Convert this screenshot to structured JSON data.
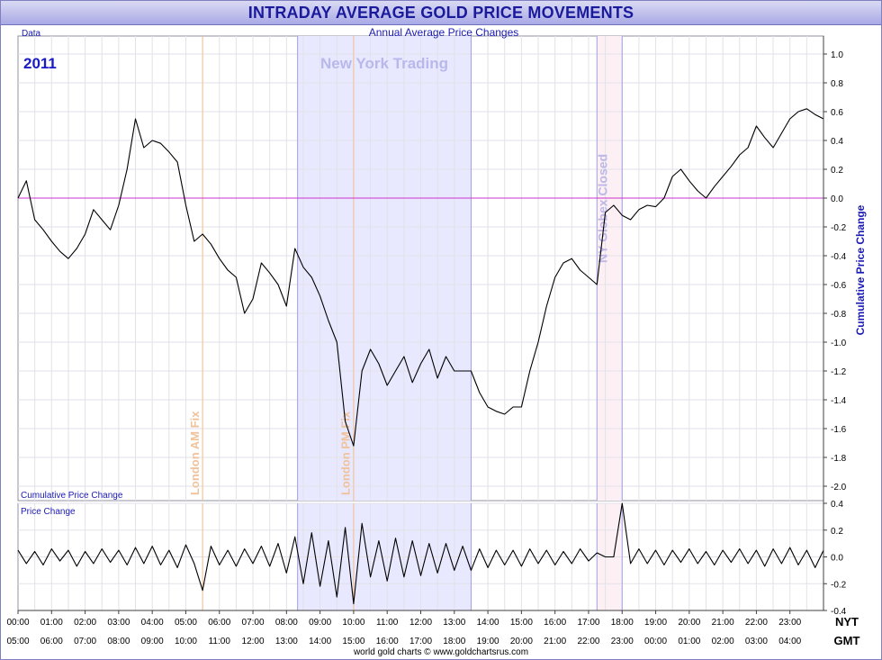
{
  "title": "INTRADAY AVERAGE GOLD PRICE MOVEMENTS",
  "footer": "world gold charts © www.goldchartsrus.com",
  "colors": {
    "title": "#1a1a9c",
    "label_blue": "#1a1ab4",
    "zero_line": "#cc33cc",
    "ny_band": "#e8e8ff",
    "globex_band": "#fdf0f4",
    "fix_line": "#f0c090",
    "band_edge": "#a0a0e0",
    "fix_text": "#f0c29a",
    "globex_text": "#bcb8e8",
    "ny_text": "#b8b8ec"
  },
  "chart_data": [
    {
      "type": "line",
      "id": "cumulative",
      "top_label": "Data",
      "subtitle": "Annual Average Price Changes",
      "year_label": "2011",
      "ylabel": "Cumulative Price Change",
      "panel_label": "Cumulative Price Change",
      "ylim": [
        -2.1,
        1.1
      ],
      "yticks": [
        "1.0",
        "0.8",
        "0.6",
        "0.4",
        "0.2",
        "0.0",
        "-0.2",
        "-0.4",
        "-0.6",
        "-0.8",
        "-1.0",
        "-1.2",
        "-1.4",
        "-1.6",
        "-1.8",
        "-2.0"
      ],
      "grid": true,
      "x_range_hours_nyt": [
        0,
        24
      ],
      "reference_line": 0.0,
      "series": [
        {
          "x": [
            0.0,
            0.25,
            0.5,
            0.75,
            1.0,
            1.25,
            1.5,
            1.75,
            2.0,
            2.25,
            2.5,
            2.75,
            3.0,
            3.25,
            3.5,
            3.75,
            4.0,
            4.25,
            4.5,
            4.75,
            5.0,
            5.25,
            5.5,
            5.75,
            6.0,
            6.25,
            6.5,
            6.75,
            7.0,
            7.25,
            7.5,
            7.75,
            8.0,
            8.25,
            8.5,
            8.75,
            9.0,
            9.25,
            9.5,
            9.75,
            10.0,
            10.25,
            10.5,
            10.75,
            11.0,
            11.25,
            11.5,
            11.75,
            12.0,
            12.25,
            12.5,
            12.75,
            13.0,
            13.25,
            13.5,
            13.75,
            14.0,
            14.25,
            14.5,
            14.75,
            15.0,
            15.25,
            15.5,
            15.75,
            16.0,
            16.25,
            16.5,
            16.75,
            17.0,
            17.25,
            17.5,
            17.75,
            18.0,
            18.25,
            18.5,
            18.75,
            19.0,
            19.25,
            19.5,
            19.75,
            20.0,
            20.25,
            20.5,
            20.75,
            21.0,
            21.25,
            21.5,
            21.75,
            22.0,
            22.25,
            22.5,
            22.75,
            23.0,
            23.25,
            23.5,
            23.75,
            24.0
          ],
          "y": [
            0.0,
            0.12,
            -0.15,
            -0.22,
            -0.3,
            -0.37,
            -0.42,
            -0.35,
            -0.25,
            -0.08,
            -0.15,
            -0.22,
            -0.05,
            0.2,
            0.55,
            0.35,
            0.4,
            0.38,
            0.32,
            0.25,
            -0.05,
            -0.3,
            -0.25,
            -0.32,
            -0.42,
            -0.5,
            -0.55,
            -0.8,
            -0.7,
            -0.45,
            -0.52,
            -0.6,
            -0.75,
            -0.35,
            -0.48,
            -0.55,
            -0.68,
            -0.85,
            -1.0,
            -1.55,
            -1.72,
            -1.2,
            -1.05,
            -1.15,
            -1.3,
            -1.2,
            -1.1,
            -1.28,
            -1.15,
            -1.05,
            -1.25,
            -1.1,
            -1.2,
            -1.2,
            -1.2,
            -1.35,
            -1.45,
            -1.48,
            -1.5,
            -1.45,
            -1.45,
            -1.2,
            -1.0,
            -0.75,
            -0.55,
            -0.45,
            -0.42,
            -0.5,
            -0.55,
            -0.6,
            -0.1,
            -0.05,
            -0.12,
            -0.15,
            -0.08,
            -0.05,
            -0.06,
            0.0,
            0.15,
            0.2,
            0.12,
            0.05,
            0.0,
            0.08,
            0.15,
            0.22,
            0.3,
            0.35,
            0.5,
            0.42,
            0.35,
            0.45,
            0.55,
            0.6,
            0.62,
            0.58,
            0.55
          ]
        }
      ]
    },
    {
      "type": "line",
      "id": "price-change",
      "panel_label": "Price Change",
      "ylim": [
        -0.4,
        0.4
      ],
      "yticks": [
        "0.4",
        "0.2",
        "0.0",
        "-0.2",
        "-0.4"
      ],
      "grid": true,
      "x_range_hours_nyt": [
        0,
        24
      ],
      "series": [
        {
          "x": [
            0.0,
            0.25,
            0.5,
            0.75,
            1.0,
            1.25,
            1.5,
            1.75,
            2.0,
            2.25,
            2.5,
            2.75,
            3.0,
            3.25,
            3.5,
            3.75,
            4.0,
            4.25,
            4.5,
            4.75,
            5.0,
            5.25,
            5.5,
            5.75,
            6.0,
            6.25,
            6.5,
            6.75,
            7.0,
            7.25,
            7.5,
            7.75,
            8.0,
            8.25,
            8.5,
            8.75,
            9.0,
            9.25,
            9.5,
            9.75,
            10.0,
            10.25,
            10.5,
            10.75,
            11.0,
            11.25,
            11.5,
            11.75,
            12.0,
            12.25,
            12.5,
            12.75,
            13.0,
            13.25,
            13.5,
            13.75,
            14.0,
            14.25,
            14.5,
            14.75,
            15.0,
            15.25,
            15.5,
            15.75,
            16.0,
            16.25,
            16.5,
            16.75,
            17.0,
            17.25,
            17.5,
            17.75,
            18.0,
            18.25,
            18.5,
            18.75,
            19.0,
            19.25,
            19.5,
            19.75,
            20.0,
            20.25,
            20.5,
            20.75,
            21.0,
            21.25,
            21.5,
            21.75,
            22.0,
            22.25,
            22.5,
            22.75,
            23.0,
            23.25,
            23.5,
            23.75,
            24.0
          ],
          "y": [
            0.05,
            -0.05,
            0.04,
            -0.06,
            0.06,
            -0.03,
            0.05,
            -0.07,
            0.04,
            -0.05,
            0.06,
            -0.04,
            0.05,
            -0.06,
            0.07,
            -0.05,
            0.08,
            -0.06,
            0.05,
            -0.08,
            0.09,
            -0.05,
            -0.25,
            0.08,
            -0.06,
            0.05,
            -0.07,
            0.06,
            -0.05,
            0.08,
            -0.07,
            0.1,
            -0.12,
            0.15,
            -0.2,
            0.18,
            -0.22,
            0.12,
            -0.3,
            0.22,
            -0.35,
            0.25,
            -0.15,
            0.12,
            -0.18,
            0.14,
            -0.15,
            0.12,
            -0.14,
            0.1,
            -0.12,
            0.1,
            -0.1,
            0.08,
            -0.1,
            0.06,
            -0.08,
            0.05,
            -0.06,
            0.05,
            -0.07,
            0.06,
            -0.05,
            0.05,
            -0.06,
            0.04,
            -0.05,
            0.06,
            -0.03,
            0.03,
            0.0,
            0.0,
            0.4,
            -0.05,
            0.06,
            -0.05,
            0.05,
            -0.06,
            0.05,
            -0.04,
            0.06,
            -0.05,
            0.04,
            -0.06,
            0.05,
            -0.04,
            0.06,
            -0.05,
            0.05,
            -0.07,
            0.06,
            -0.05,
            0.07,
            -0.06,
            0.05,
            -0.08,
            0.05
          ]
        }
      ]
    }
  ],
  "x_axis": {
    "nyt_label": "NYT",
    "gmt_label": "GMT",
    "nyt_ticks": [
      "00:00",
      "01:00",
      "02:00",
      "03:00",
      "04:00",
      "05:00",
      "06:00",
      "07:00",
      "08:00",
      "09:00",
      "10:00",
      "11:00",
      "12:00",
      "13:00",
      "14:00",
      "15:00",
      "16:00",
      "17:00",
      "18:00",
      "19:00",
      "20:00",
      "21:00",
      "22:00",
      "23:00"
    ],
    "gmt_ticks": [
      "05:00",
      "06:00",
      "07:00",
      "08:00",
      "09:00",
      "10:00",
      "11:00",
      "12:00",
      "13:00",
      "14:00",
      "15:00",
      "16:00",
      "17:00",
      "18:00",
      "19:00",
      "20:00",
      "21:00",
      "22:00",
      "23:00",
      "00:00",
      "01:00",
      "02:00",
      "03:00",
      "04:00"
    ]
  },
  "annotations": {
    "ny_trading": {
      "label": "New York Trading",
      "start_hour": 8.33,
      "end_hour": 13.5
    },
    "globex_closed": {
      "label": "NY Globex Closed",
      "start_hour": 17.25,
      "end_hour": 18.0
    },
    "london_am_fix": {
      "label": "London AM Fix",
      "hour": 5.5
    },
    "london_pm_fix": {
      "label": "London PM Fix",
      "hour": 10.0
    }
  }
}
